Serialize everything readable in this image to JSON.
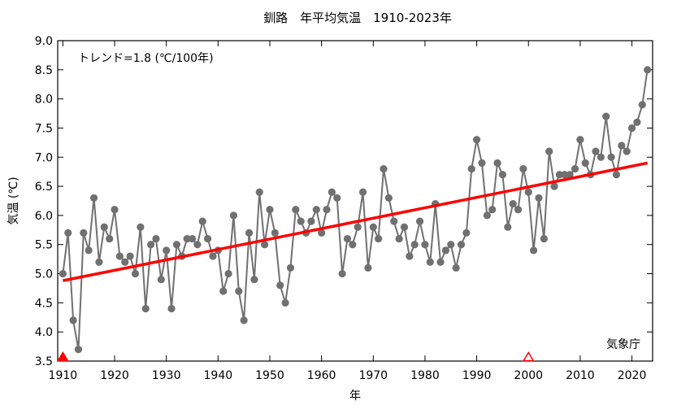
{
  "chart_data": {
    "type": "line",
    "title": "釧路　年平均気温　1910-2023年",
    "xlabel": "年",
    "ylabel": "気温 (℃)",
    "trend_label": "トレンド=1.8 (℃/100年)",
    "source_label": "気象庁",
    "xlim": [
      1909,
      2024
    ],
    "ylim": [
      3.5,
      9.0
    ],
    "x_ticks": [
      1910,
      1920,
      1930,
      1940,
      1950,
      1960,
      1970,
      1980,
      1990,
      2000,
      2010,
      2020
    ],
    "y_ticks": [
      3.5,
      4.0,
      4.5,
      5.0,
      5.5,
      6.0,
      6.5,
      7.0,
      7.5,
      8.0,
      8.5,
      9.0
    ],
    "grid": false,
    "series": [
      {
        "x": [
          1910,
          1911,
          1912,
          1913,
          1914,
          1915,
          1916,
          1917,
          1918,
          1919,
          1920,
          1921,
          1922,
          1923,
          1924,
          1925,
          1926,
          1927,
          1928,
          1929,
          1930,
          1931,
          1932,
          1933,
          1934,
          1935,
          1936,
          1937,
          1938,
          1939,
          1940,
          1941,
          1942,
          1943,
          1944,
          1945,
          1946,
          1947,
          1948,
          1949,
          1950,
          1951,
          1952,
          1953,
          1954,
          1955,
          1956,
          1957,
          1958,
          1959,
          1960,
          1961,
          1962,
          1963,
          1964,
          1965,
          1966,
          1967,
          1968,
          1969,
          1970,
          1971,
          1972,
          1973,
          1974,
          1975,
          1976,
          1977,
          1978,
          1979,
          1980,
          1981,
          1982,
          1983,
          1984,
          1985,
          1986,
          1987,
          1988,
          1989,
          1990,
          1991,
          1992,
          1993,
          1994,
          1995,
          1996,
          1997,
          1998,
          1999,
          2000,
          2001,
          2002,
          2003,
          2004,
          2005,
          2006,
          2007,
          2008,
          2009,
          2010,
          2011,
          2012,
          2013,
          2014,
          2015,
          2016,
          2017,
          2018,
          2019,
          2020,
          2021,
          2022,
          2023
        ],
        "values": [
          5.0,
          5.7,
          4.2,
          3.7,
          5.7,
          5.4,
          6.3,
          5.2,
          5.8,
          5.6,
          6.1,
          5.3,
          5.2,
          5.3,
          5.0,
          5.8,
          4.4,
          5.5,
          5.6,
          4.9,
          5.4,
          4.4,
          5.5,
          5.3,
          5.6,
          5.6,
          5.5,
          5.9,
          5.6,
          5.3,
          5.4,
          4.7,
          5.0,
          6.0,
          4.7,
          4.2,
          5.7,
          4.9,
          6.4,
          5.5,
          6.1,
          5.7,
          4.8,
          4.5,
          5.1,
          6.1,
          5.9,
          5.7,
          5.9,
          6.1,
          5.7,
          6.1,
          6.4,
          6.3,
          5.0,
          5.6,
          5.5,
          5.8,
          6.4,
          5.1,
          5.8,
          5.6,
          6.8,
          6.3,
          5.9,
          5.6,
          5.8,
          5.3,
          5.5,
          5.9,
          5.5,
          5.2,
          6.2,
          5.2,
          5.4,
          5.5,
          5.1,
          5.5,
          5.7,
          6.8,
          7.3,
          6.9,
          6.0,
          6.1,
          6.9,
          6.7,
          5.8,
          6.2,
          6.1,
          6.8,
          6.4,
          5.4,
          6.3,
          5.6,
          7.1,
          6.5,
          6.7,
          6.7,
          6.7,
          6.8,
          7.3,
          6.9,
          6.7,
          7.1,
          7.0,
          7.7,
          7.0,
          6.7,
          7.2,
          7.1,
          7.5,
          7.6,
          7.9,
          8.5
        ],
        "color": "#707070"
      }
    ],
    "trend_line": {
      "x": [
        1910,
        2023
      ],
      "y": [
        4.88,
        6.9
      ],
      "color": "#ff0000"
    },
    "markers": [
      {
        "x": 1910,
        "style": "filled-triangle",
        "color": "#ff0000"
      },
      {
        "x": 2000,
        "style": "open-triangle",
        "color": "#ff0000"
      }
    ]
  }
}
